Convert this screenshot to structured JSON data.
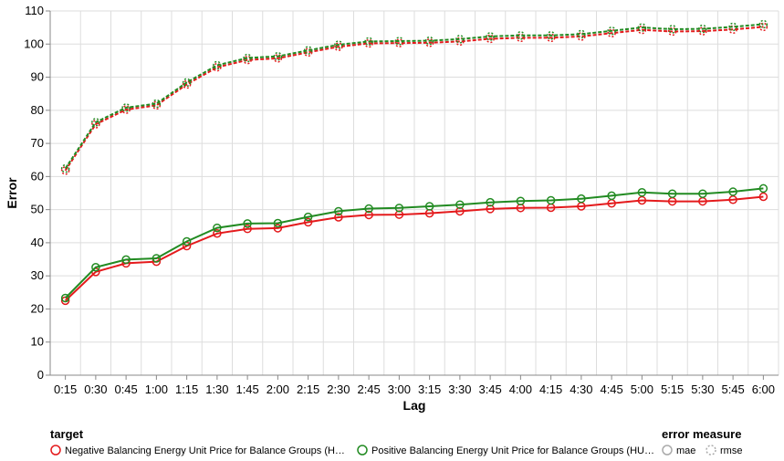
{
  "chart_data": {
    "type": "line",
    "xlabel": "Lag",
    "ylabel": "Error",
    "ylim": [
      0,
      110
    ],
    "yticks": [
      0,
      10,
      20,
      30,
      40,
      50,
      60,
      70,
      80,
      90,
      100,
      110
    ],
    "grid": true,
    "categories": [
      "0:15",
      "0:30",
      "0:45",
      "1:00",
      "1:15",
      "1:30",
      "1:45",
      "2:00",
      "2:15",
      "2:30",
      "2:45",
      "3:00",
      "3:15",
      "3:30",
      "3:45",
      "4:00",
      "4:15",
      "4:30",
      "4:45",
      "5:00",
      "5:15",
      "5:30",
      "5:45",
      "6:00"
    ],
    "series": [
      {
        "name": "Negative Balancing Energy Unit Price for Balance Groups (H…",
        "measure": "rmse",
        "color": "#e41a1c",
        "values": [
          61.8,
          75.8,
          80.2,
          81.5,
          87.8,
          93.0,
          95.2,
          95.7,
          97.5,
          99.2,
          100.2,
          100.3,
          100.4,
          100.8,
          101.6,
          101.9,
          101.9,
          102.3,
          103.3,
          104.3,
          103.8,
          103.9,
          104.4,
          105.2
        ]
      },
      {
        "name": "Positive Balancing Energy Unit Price for Balance Groups (HU…",
        "measure": "rmse",
        "color": "#228b22",
        "values": [
          62.4,
          76.4,
          80.8,
          82.0,
          88.4,
          93.6,
          95.8,
          96.3,
          98.1,
          99.8,
          100.8,
          100.9,
          101.0,
          101.5,
          102.3,
          102.6,
          102.6,
          103.0,
          104.0,
          105.0,
          104.5,
          104.6,
          105.2,
          106.0
        ]
      },
      {
        "name": "Negative Balancing Energy Unit Price for Balance Groups (H…",
        "measure": "mae",
        "color": "#e41a1c",
        "values": [
          22.5,
          31.2,
          33.8,
          34.3,
          39.0,
          42.8,
          44.2,
          44.4,
          46.2,
          47.7,
          48.4,
          48.5,
          48.9,
          49.5,
          50.2,
          50.5,
          50.6,
          51.0,
          51.9,
          52.8,
          52.5,
          52.5,
          53.0,
          53.9
        ]
      },
      {
        "name": "Positive Balancing Energy Unit Price for Balance Groups (HU…",
        "measure": "mae",
        "color": "#228b22",
        "values": [
          23.3,
          32.6,
          34.9,
          35.3,
          40.4,
          44.5,
          45.8,
          45.9,
          47.8,
          49.5,
          50.3,
          50.5,
          51.0,
          51.5,
          52.2,
          52.6,
          52.8,
          53.3,
          54.2,
          55.2,
          54.8,
          54.8,
          55.4,
          56.4
        ]
      }
    ]
  },
  "legend": {
    "target_title": "target",
    "targets": [
      {
        "label": "Negative Balancing Energy Unit Price for Balance Groups (H…",
        "color": "#e41a1c"
      },
      {
        "label": "Positive Balancing Energy Unit Price for Balance Groups (HU…",
        "color": "#228b22"
      }
    ],
    "measure_title": "error measure",
    "measures": [
      {
        "label": "mae",
        "style": "solid"
      },
      {
        "label": "rmse",
        "style": "dashed"
      }
    ]
  }
}
